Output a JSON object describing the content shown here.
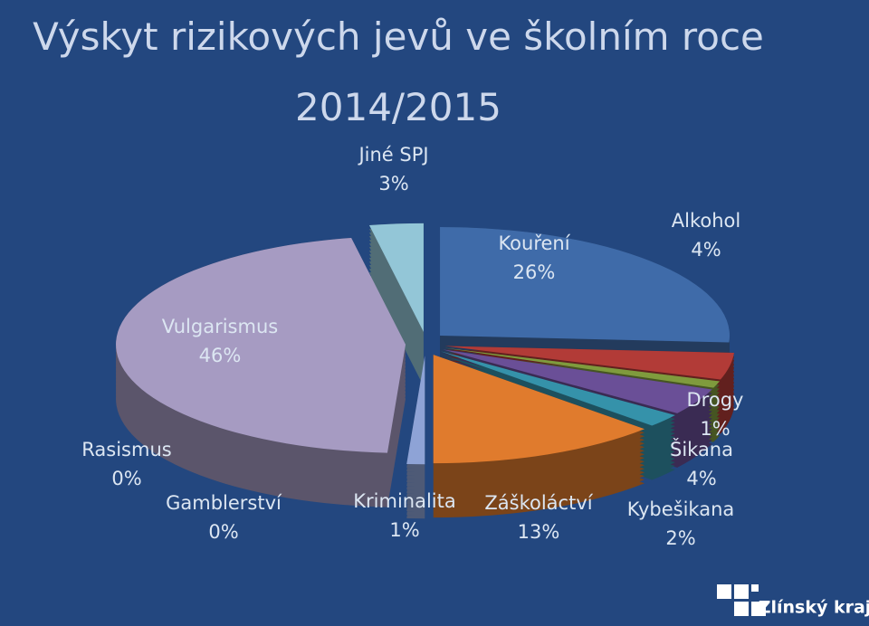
{
  "chart_data": {
    "type": "pie",
    "title": "Výskyt rizikových jevů ve školním roce 2014/2015",
    "categories": [
      "Kouření",
      "Alkohol",
      "Drogy",
      "Šikana",
      "Kybešikana",
      "Záškoláctví",
      "Kriminalita",
      "Gamblerství",
      "Rasismus",
      "Vulgarismus",
      "Jiné SPJ"
    ],
    "values": [
      26,
      4,
      1,
      4,
      2,
      13,
      1,
      0,
      0,
      46,
      3
    ],
    "value_labels": [
      "26%",
      "4%",
      "1%",
      "4%",
      "2%",
      "13%",
      "1%",
      "0%",
      "0%",
      "46%",
      "3%"
    ],
    "colors": [
      "#3f6ba9",
      "#b23b37",
      "#7f9b3d",
      "#6a4f97",
      "#3592aa",
      "#e07b2d",
      "#8ea3d6",
      "#c0504d",
      "#9bbb59",
      "#a69bc2",
      "#93c6d7"
    ]
  },
  "logo": "Zlínský kraj"
}
